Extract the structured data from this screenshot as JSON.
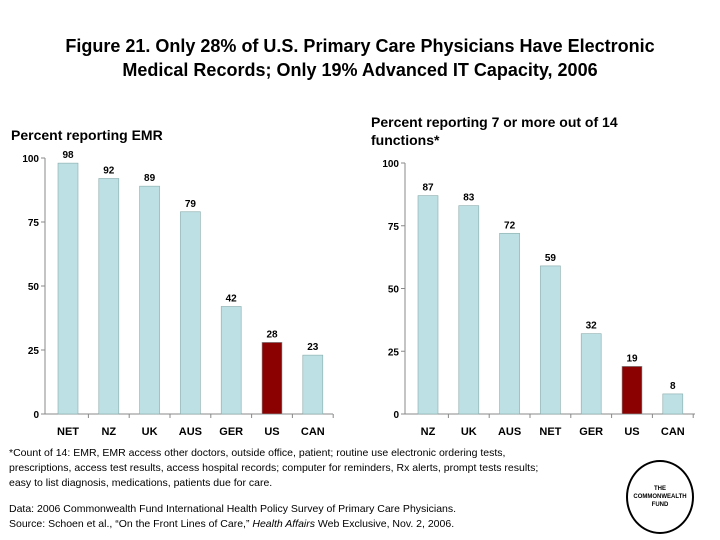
{
  "title_line1": "Figure 21. Only 28% of U.S. Primary Care Physicians Have Electronic",
  "title_line2": "Medical Records; Only 19% Advanced IT Capacity, 2006",
  "chart_data": [
    {
      "type": "bar",
      "title": "Percent reporting EMR",
      "categories": [
        "NET",
        "NZ",
        "UK",
        "AUS",
        "GER",
        "US",
        "CAN"
      ],
      "values": [
        98,
        92,
        89,
        79,
        42,
        28,
        23
      ],
      "ylim": [
        0,
        100
      ],
      "yticks": [
        0,
        25,
        50,
        75,
        100
      ],
      "colors": {
        "default": "#bde0e4",
        "highlight": "#8b0000"
      },
      "highlight": "US",
      "grid": false
    },
    {
      "type": "bar",
      "title": "Percent reporting 7 or more out of 14 functions*",
      "categories": [
        "NZ",
        "UK",
        "AUS",
        "NET",
        "GER",
        "US",
        "CAN"
      ],
      "values": [
        87,
        83,
        72,
        59,
        32,
        19,
        8
      ],
      "ylim": [
        0,
        100
      ],
      "yticks": [
        0,
        25,
        50,
        75,
        100
      ],
      "colors": {
        "default": "#bde0e4",
        "highlight": "#8b0000"
      },
      "highlight": "US",
      "grid": false
    }
  ],
  "footnote": [
    "*Count of 14: EMR, EMR access other doctors, outside office, patient; routine use electronic ordering  tests,",
    "prescriptions, access test results, access hospital records; computer for  reminders, Rx alerts, prompt tests results;",
    "easy to list diagnosis, medications, patients due for care."
  ],
  "data_line": "Data: 2006 Commonwealth Fund International Health Policy Survey of Primary Care Physicians.",
  "source_prefix": "Source: Schoen et al.,  “On the Front Lines of Care,” ",
  "source_journal": "Health Affairs",
  "source_suffix": " Web Exclusive, Nov. 2, 2006.",
  "logo": "THE COMMONWEALTH FUND"
}
